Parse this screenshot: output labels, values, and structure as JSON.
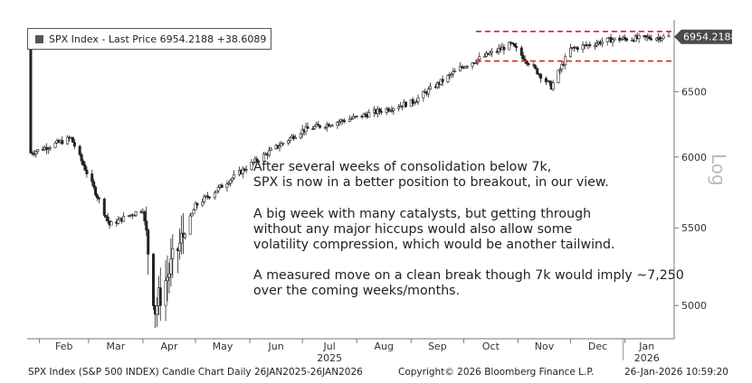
{
  "legend": {
    "label": "SPX Index - Last Price 6954.2188  +38.6089"
  },
  "last_price_tag": "6954.2188",
  "annotation": {
    "lines": [
      "After several weeks of consolidation below 7k,",
      "SPX is now in a better position to breakout, in our view.",
      "",
      "A big week with many catalysts, but getting through",
      "without any major hiccups would also allow some",
      "volatility compression, which would be another tailwind.",
      "",
      "A measured move on a clean break though 7k would imply ~7,250",
      "over the coming weeks/months."
    ]
  },
  "footer": {
    "left": "SPX Index (S&P 500 INDEX) Candle Chart Daily 26JAN2025-26JAN2026",
    "center": "Copyright© 2026 Bloomberg Finance L.P.",
    "right": "26-Jan-2026 10:59:20"
  },
  "chart_data": {
    "type": "candlestick",
    "title": "",
    "ylabel": "Log",
    "yscale": "log",
    "ylim": [
      4800,
      7100
    ],
    "y_ticks": [
      5000,
      5500,
      6000,
      6500
    ],
    "x_tick_labels": [
      "Feb",
      "Mar",
      "Apr",
      "May",
      "Jun",
      "Jul",
      "Aug",
      "Sep",
      "Oct",
      "Nov",
      "Dec",
      "Jan"
    ],
    "x_year_labels": [
      {
        "after_month": "Jul",
        "text": "2025"
      },
      {
        "after_month": "Jan",
        "text": "2026"
      }
    ],
    "last_price": 6954.2188,
    "resistance_levels": [
      7000,
      6750
    ],
    "monthly_levels": [
      {
        "date": "2025-01-27",
        "close": 6030
      },
      {
        "date": "2025-02-19",
        "close": 6140
      },
      {
        "date": "2025-03-13",
        "close": 5520
      },
      {
        "date": "2025-04-01",
        "close": 5630
      },
      {
        "date": "2025-04-08",
        "close": 4980
      },
      {
        "date": "2025-05-01",
        "close": 5650
      },
      {
        "date": "2025-06-02",
        "close": 5950
      },
      {
        "date": "2025-07-01",
        "close": 6200
      },
      {
        "date": "2025-08-01",
        "close": 6300
      },
      {
        "date": "2025-09-02",
        "close": 6420
      },
      {
        "date": "2025-10-01",
        "close": 6710
      },
      {
        "date": "2025-10-28",
        "close": 6890
      },
      {
        "date": "2025-11-20",
        "close": 6540
      },
      {
        "date": "2025-12-01",
        "close": 6850
      },
      {
        "date": "2025-12-24",
        "close": 6930
      },
      {
        "date": "2026-01-26",
        "close": 6954
      }
    ]
  }
}
